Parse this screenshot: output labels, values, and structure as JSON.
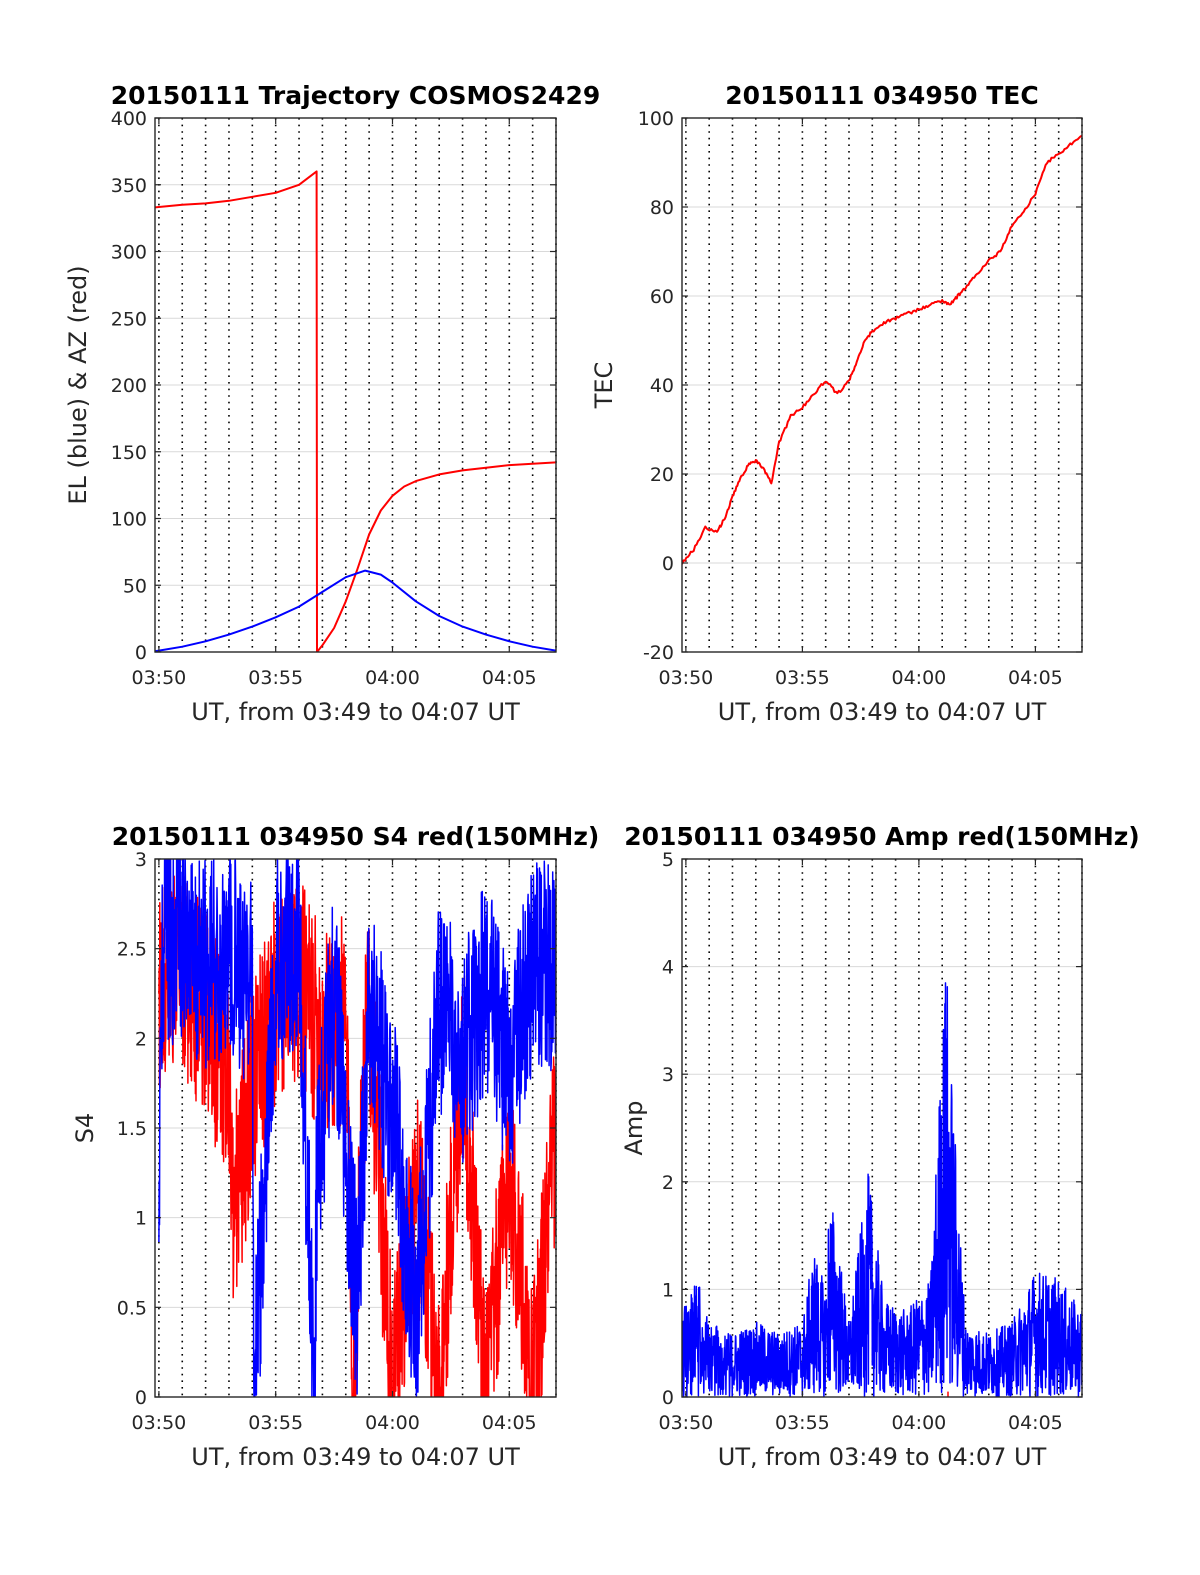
{
  "colors": {
    "red": "#ff0000",
    "blue": "#0000ff",
    "grid": "#d9d9d9",
    "vgrid": "#000000"
  },
  "chart_data": [
    {
      "type": "line",
      "title": "20150111 Trajectory COSMOS2429",
      "xlabel": "UT, from 03:49 to 04:07 UT",
      "ylabel": "EL (blue) & AZ (red)",
      "xlim": [
        "03:49:50",
        "04:07:00"
      ],
      "ylim": [
        0,
        400
      ],
      "xticks": [
        "03:50",
        "03:55",
        "04:00",
        "04:05"
      ],
      "yticks": [
        "0",
        "50",
        "100",
        "150",
        "200",
        "250",
        "300",
        "350",
        "400"
      ],
      "grid": "horizontal solid, vertical dotted every minute",
      "series": [
        {
          "color": "#ff0000",
          "x": [
            "03:49:50",
            "03:51:00",
            "03:52:00",
            "03:53:00",
            "03:54:00",
            "03:55:00",
            "03:56:00",
            "03:56:45",
            "03:56:46",
            "03:57:00",
            "03:57:30",
            "03:58:00",
            "03:58:30",
            "03:59:00",
            "03:59:30",
            "04:00:00",
            "04:00:30",
            "04:01:00",
            "04:02:00",
            "04:03:00",
            "04:04:00",
            "04:05:00",
            "04:06:00",
            "04:07:00"
          ],
          "values": [
            333,
            335,
            336,
            338,
            341,
            344,
            350,
            360,
            0,
            5,
            18,
            38,
            62,
            88,
            106,
            117,
            124,
            128,
            133,
            136,
            138,
            140,
            141,
            142
          ]
        },
        {
          "color": "#0000ff",
          "x": [
            "03:49:50",
            "03:51:00",
            "03:52:00",
            "03:53:00",
            "03:54:00",
            "03:55:00",
            "03:56:00",
            "03:57:00",
            "03:58:00",
            "03:58:50",
            "03:59:30",
            "04:00:00",
            "04:01:00",
            "04:02:00",
            "04:03:00",
            "04:04:00",
            "04:05:00",
            "04:06:00",
            "04:07:00"
          ],
          "values": [
            0.5,
            4,
            8,
            13,
            19,
            26,
            34,
            45,
            56,
            61,
            58,
            52,
            38,
            27,
            19,
            13,
            8,
            4,
            1
          ]
        }
      ]
    },
    {
      "type": "line",
      "title": "20150111 034950 TEC",
      "xlabel": "UT, from 03:49 to 04:07 UT",
      "ylabel": "TEC",
      "xlim": [
        "03:49:50",
        "04:07:00"
      ],
      "ylim": [
        -20,
        100
      ],
      "xticks": [
        "03:50",
        "03:55",
        "04:00",
        "04:05"
      ],
      "yticks": [
        "-20",
        "0",
        "20",
        "40",
        "60",
        "80",
        "100"
      ],
      "series": [
        {
          "color": "#ff0000",
          "x": [
            "03:49:50",
            "03:50:20",
            "03:50:50",
            "03:51:20",
            "03:51:40",
            "03:52:00",
            "03:52:20",
            "03:52:40",
            "03:53:00",
            "03:53:20",
            "03:53:40",
            "03:54:00",
            "03:54:30",
            "03:55:00",
            "03:55:30",
            "03:56:00",
            "03:56:30",
            "03:57:00",
            "03:57:20",
            "03:57:40",
            "03:58:00",
            "03:58:30",
            "03:59:00",
            "03:59:30",
            "04:00:00",
            "04:00:30",
            "04:01:00",
            "04:01:20",
            "04:01:40",
            "04:02:00",
            "04:02:30",
            "04:03:00",
            "04:03:30",
            "04:04:00",
            "04:04:30",
            "04:05:00",
            "04:05:30",
            "04:06:00",
            "04:06:30",
            "04:07:00"
          ],
          "values": [
            0,
            3,
            8,
            7,
            10,
            15,
            19,
            22,
            23,
            21,
            18,
            27,
            33,
            35,
            38,
            41,
            38,
            41,
            45,
            50,
            52,
            54,
            55,
            56,
            57,
            58,
            59,
            58,
            60,
            62,
            65,
            68,
            70,
            76,
            79,
            83,
            90,
            92,
            94,
            96
          ]
        }
      ]
    },
    {
      "type": "line",
      "title": "20150111 034950 S4 red(150MHz)",
      "xlabel": "UT, from 03:49 to 04:07 UT",
      "ylabel": "S4",
      "xlim": [
        "03:49:50",
        "04:07:00"
      ],
      "ylim": [
        0,
        3
      ],
      "xticks": [
        "03:50",
        "03:55",
        "04:00",
        "04:05"
      ],
      "yticks": [
        "0",
        "0.5",
        "1",
        "1.5",
        "2",
        "2.5",
        "3"
      ],
      "series": [
        {
          "color": "#ff0000",
          "x": [
            "03:50:00",
            "03:51:00",
            "03:52:00",
            "03:53:00",
            "03:53:10",
            "03:54:00",
            "03:55:00",
            "03:56:00",
            "03:57:00",
            "03:58:00",
            "03:58:20",
            "03:58:40",
            "03:59:00",
            "04:00:00",
            "04:01:00",
            "04:02:00",
            "04:03:00",
            "04:04:00",
            "04:05:00",
            "04:06:00",
            "04:07:00"
          ],
          "values": [
            2.3,
            2.4,
            2.1,
            1.8,
            1.0,
            1.7,
            2.2,
            2.3,
            2.0,
            2.1,
            0.0,
            1.5,
            2.2,
            0.0,
            1.2,
            0.0,
            1.9,
            0.0,
            1.3,
            0.0,
            1.5
          ]
        },
        {
          "color": "#0000ff",
          "x": [
            "03:50:00",
            "03:50:10",
            "03:51:00",
            "03:52:00",
            "03:53:00",
            "03:54:00",
            "03:54:05",
            "03:55:00",
            "03:56:00",
            "03:56:40",
            "03:56:45",
            "03:57:30",
            "03:58:30",
            "03:59:00",
            "04:00:00",
            "04:01:00",
            "04:02:00",
            "04:03:00",
            "04:04:00",
            "04:05:00",
            "04:06:00",
            "04:07:00"
          ],
          "values": [
            1.3,
            2.5,
            2.6,
            2.4,
            2.5,
            2.3,
            0.0,
            2.4,
            2.5,
            0.0,
            1.2,
            2.3,
            0.5,
            2.2,
            1.6,
            0.45,
            2.2,
            1.9,
            2.3,
            1.8,
            2.4,
            2.4
          ]
        }
      ]
    },
    {
      "type": "line",
      "title": "20150111 034950 Amp red(150MHz)",
      "xlabel": "UT, from 03:49 to 04:07 UT",
      "ylabel": "Amp",
      "xlim": [
        "03:49:50",
        "04:07:00"
      ],
      "ylim": [
        0,
        5
      ],
      "xticks": [
        "03:50",
        "03:55",
        "04:00",
        "04:05"
      ],
      "yticks": [
        "0",
        "1",
        "2",
        "3",
        "4",
        "5"
      ],
      "series": [
        {
          "color": "#ff0000",
          "x": [
            "04:01:15"
          ],
          "values": [
            0.05
          ]
        },
        {
          "color": "#0000ff",
          "x": [
            "03:49:50",
            "03:50:30",
            "03:51:00",
            "03:52:00",
            "03:53:00",
            "03:54:00",
            "03:55:00",
            "03:55:30",
            "03:56:00",
            "03:56:10",
            "03:57:00",
            "03:57:50",
            "03:58:30",
            "03:59:30",
            "04:00:30",
            "04:01:10",
            "04:01:20",
            "04:02:00",
            "04:03:00",
            "04:04:00",
            "04:05:00",
            "04:06:00",
            "04:07:00"
          ],
          "values": [
            0.8,
            1.1,
            0.7,
            0.6,
            0.7,
            0.6,
            0.7,
            1.4,
            1.0,
            2.0,
            0.7,
            2.1,
            0.9,
            0.8,
            1.1,
            4.2,
            3.3,
            0.7,
            0.6,
            0.7,
            1.2,
            1.1,
            0.8
          ]
        }
      ]
    }
  ]
}
